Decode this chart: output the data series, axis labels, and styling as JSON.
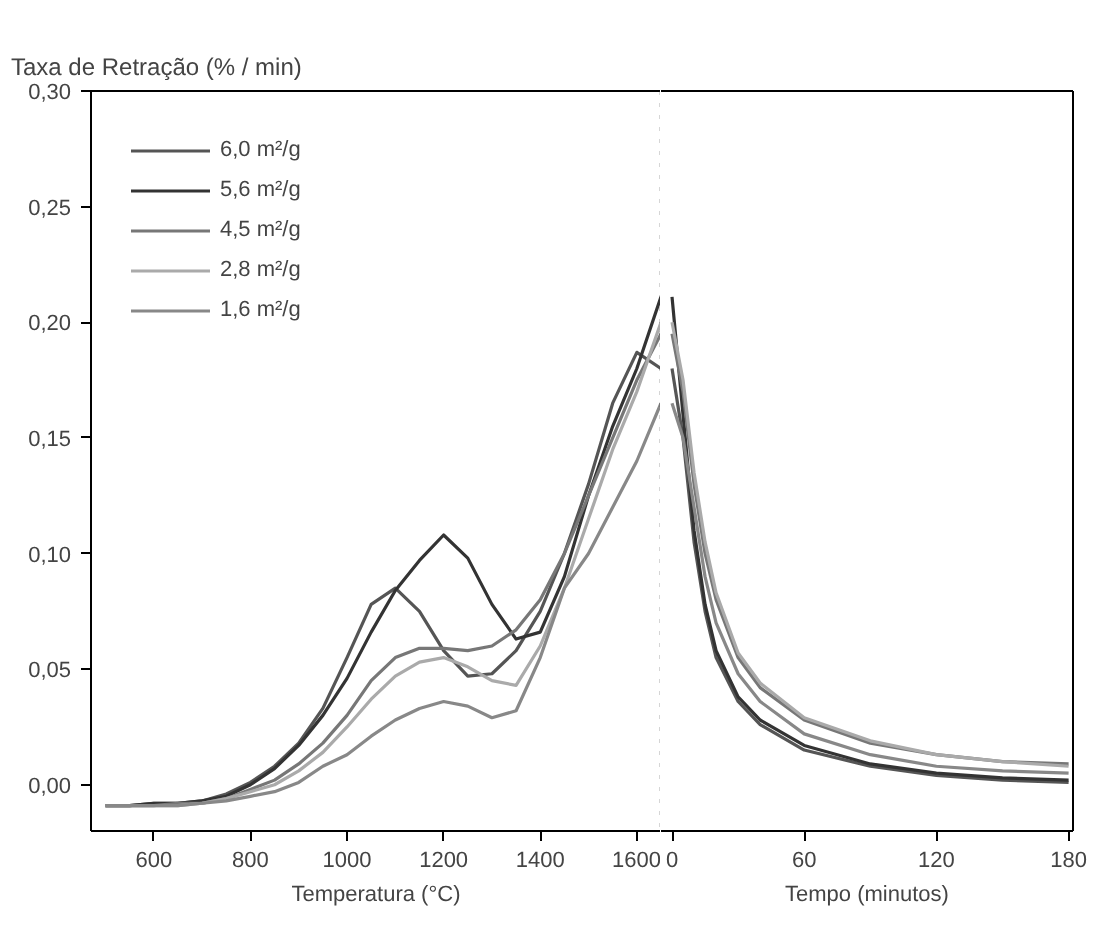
{
  "chart_data": [
    {
      "type": "line",
      "title": "Taxa de Retração (% / min)",
      "xlabel": "Temperatura (°C)",
      "legend": "top left",
      "grid": false,
      "marker": "none",
      "line_style": "solid",
      "x": [
        500,
        550,
        600,
        650,
        700,
        750,
        800,
        850,
        900,
        950,
        1000,
        1050,
        1100,
        1150,
        1200,
        1250,
        1300,
        1350,
        1400,
        1450,
        1500,
        1550,
        1600,
        1650
      ],
      "xlim": [
        470,
        1650
      ],
      "ref_lines": [
        {
          "axis": "x",
          "value": 1650,
          "line_style": "dotted",
          "color": "#333333"
        }
      ],
      "xticks": [
        600,
        800,
        1000,
        1200,
        1400,
        1600
      ],
      "ylim": [
        -0.02,
        0.3
      ],
      "yticks": [
        {
          "value": 0,
          "label": "0,00"
        },
        {
          "value": 0.05,
          "label": "0,05"
        },
        {
          "value": 0.1,
          "label": "0,10"
        },
        {
          "value": 0.15,
          "label": "0,15"
        },
        {
          "value": 0.2,
          "label": "0,20"
        },
        {
          "value": 0.25,
          "label": "0,25"
        },
        {
          "value": 0.3,
          "label": "0,30"
        }
      ],
      "series": [
        {
          "name": "6,0 m²/g",
          "color": "#555555",
          "values": [
            -0.009,
            -0.009,
            -0.008,
            -0.008,
            -0.007,
            -0.004,
            0.001,
            0.008,
            0.018,
            0.033,
            0.055,
            0.078,
            0.085,
            0.075,
            0.058,
            0.047,
            0.048,
            0.058,
            0.075,
            0.1,
            0.13,
            0.165,
            0.187,
            0.18
          ]
        },
        {
          "name": "5,6 m²/g",
          "color": "#333333",
          "values": [
            -0.009,
            -0.009,
            -0.008,
            -0.008,
            -0.007,
            -0.005,
            0.0,
            0.007,
            0.017,
            0.03,
            0.046,
            0.066,
            0.084,
            0.097,
            0.108,
            0.098,
            0.078,
            0.063,
            0.066,
            0.09,
            0.125,
            0.155,
            0.18,
            0.211
          ]
        },
        {
          "name": "4,5 m²/g",
          "color": "#777777",
          "values": [
            -0.009,
            -0.009,
            -0.009,
            -0.008,
            -0.008,
            -0.006,
            -0.002,
            0.002,
            0.009,
            0.018,
            0.03,
            0.045,
            0.055,
            0.059,
            0.059,
            0.058,
            0.06,
            0.067,
            0.08,
            0.1,
            0.125,
            0.15,
            0.175,
            0.195
          ]
        },
        {
          "name": "2,8 m²/g",
          "color": "#aaaaaa",
          "values": [
            -0.009,
            -0.009,
            -0.009,
            -0.009,
            -0.008,
            -0.006,
            -0.003,
            0.0,
            0.006,
            0.014,
            0.025,
            0.037,
            0.047,
            0.053,
            0.055,
            0.051,
            0.045,
            0.043,
            0.06,
            0.085,
            0.115,
            0.145,
            0.17,
            0.2
          ]
        },
        {
          "name": "1,6 m²/g",
          "color": "#888888",
          "values": [
            -0.009,
            -0.009,
            -0.009,
            -0.009,
            -0.008,
            -0.007,
            -0.005,
            -0.003,
            0.001,
            0.008,
            0.013,
            0.021,
            0.028,
            0.033,
            0.036,
            0.034,
            0.029,
            0.032,
            0.055,
            0.085,
            0.1,
            0.12,
            0.14,
            0.165
          ]
        }
      ]
    },
    {
      "type": "line",
      "xlabel": "Tempo (minutos)",
      "grid": false,
      "marker": "none",
      "line_style": "solid",
      "tick_labels": "x",
      "x": [
        0,
        5,
        10,
        15,
        20,
        30,
        40,
        60,
        90,
        120,
        150,
        180
      ],
      "xlim": [
        -5,
        182
      ],
      "xticks": [
        0,
        60,
        120,
        180
      ],
      "ylim": [
        -0.02,
        0.3
      ],
      "series": [
        {
          "color": "#555555",
          "values": [
            0.18,
            0.15,
            0.105,
            0.075,
            0.055,
            0.036,
            0.026,
            0.015,
            0.008,
            0.004,
            0.002,
            0.001
          ]
        },
        {
          "color": "#333333",
          "values": [
            0.211,
            0.16,
            0.11,
            0.078,
            0.058,
            0.038,
            0.028,
            0.017,
            0.009,
            0.005,
            0.003,
            0.002
          ]
        },
        {
          "color": "#777777",
          "values": [
            0.195,
            0.17,
            0.13,
            0.1,
            0.08,
            0.055,
            0.042,
            0.028,
            0.018,
            0.013,
            0.01,
            0.009
          ]
        },
        {
          "color": "#aaaaaa",
          "values": [
            0.2,
            0.175,
            0.135,
            0.105,
            0.083,
            0.057,
            0.044,
            0.029,
            0.019,
            0.013,
            0.01,
            0.008
          ]
        },
        {
          "color": "#888888",
          "values": [
            0.165,
            0.15,
            0.12,
            0.09,
            0.07,
            0.048,
            0.036,
            0.022,
            0.013,
            0.008,
            0.006,
            0.005
          ]
        }
      ]
    }
  ]
}
